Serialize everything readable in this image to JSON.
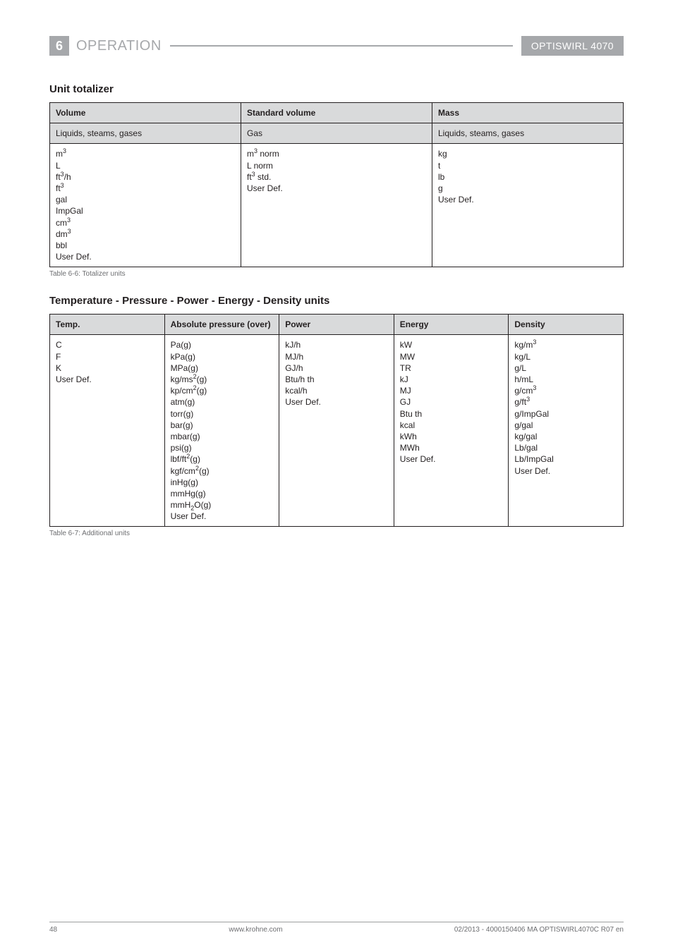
{
  "header": {
    "chapter_number": "6",
    "chapter_title": "OPERATION",
    "product_name": "OPTISWIRL 4070"
  },
  "section1": {
    "heading": "Unit totalizer",
    "caption": "Table 6-6: Totalizer units",
    "header_row": [
      "Volume",
      "Standard volume",
      "Mass"
    ],
    "sub_row": [
      "Liquids, steams, gases",
      "Gas",
      "Liquids, steams, gases"
    ],
    "col1_lines": [
      "m<sup>3</sup>",
      "L",
      "ft<sup>3</sup>/h",
      "ft<sup>3</sup>",
      "gal",
      "ImpGal",
      "cm<sup>3</sup>",
      "dm<sup>3</sup>",
      "bbl",
      "User Def."
    ],
    "col2_lines": [
      "m<sup>3</sup> norm",
      "L norm",
      "ft<sup>3</sup> std.",
      "User Def."
    ],
    "col3_lines": [
      "kg",
      "t",
      "lb",
      "g",
      "User Def."
    ]
  },
  "section2": {
    "heading": "Temperature - Pressure - Power - Energy - Density units",
    "caption": "Table 6-7: Additional units",
    "header_row": [
      "Temp.",
      "Absolute pressure (over)",
      "Power",
      "Energy",
      "Density"
    ],
    "col1_lines": [
      "C",
      "F",
      "K",
      "User Def."
    ],
    "col2_lines": [
      "Pa(g)",
      "kPa(g)",
      "MPa(g)",
      "kg/ms<sup>2</sup>(g)",
      "kp/cm<sup>2</sup>(g)",
      "atm(g)",
      "torr(g)",
      "bar(g)",
      "mbar(g)",
      "psi(g)",
      "lbf/ft<sup>2</sup>(g)",
      "kgf/cm<sup>2</sup>(g)",
      "inHg(g)",
      "mmHg(g)",
      "mmH<sub>2</sub>O(g)",
      "User Def."
    ],
    "col3_lines": [
      "kJ/h",
      "MJ/h",
      "GJ/h",
      "Btu/h th",
      "kcal/h",
      "User Def."
    ],
    "col4_lines": [
      "kW",
      "MW",
      "TR",
      "kJ",
      "MJ",
      "GJ",
      "Btu th",
      "kcal",
      "kWh",
      "MWh",
      "User Def."
    ],
    "col5_lines": [
      "kg/m<sup>3</sup>",
      "kg/L",
      "g/L",
      "h/mL",
      "g/cm<sup>3</sup>",
      "g/ft<sup>3</sup>",
      "g/ImpGal",
      "g/gal",
      "kg/gal",
      "Lb/gal",
      "Lb/ImpGal",
      "User Def."
    ]
  },
  "footer": {
    "page_number": "48",
    "site": "www.krohne.com",
    "doc_id": "02/2013 - 4000150406 MA OPTISWIRL4070C R07 en"
  }
}
